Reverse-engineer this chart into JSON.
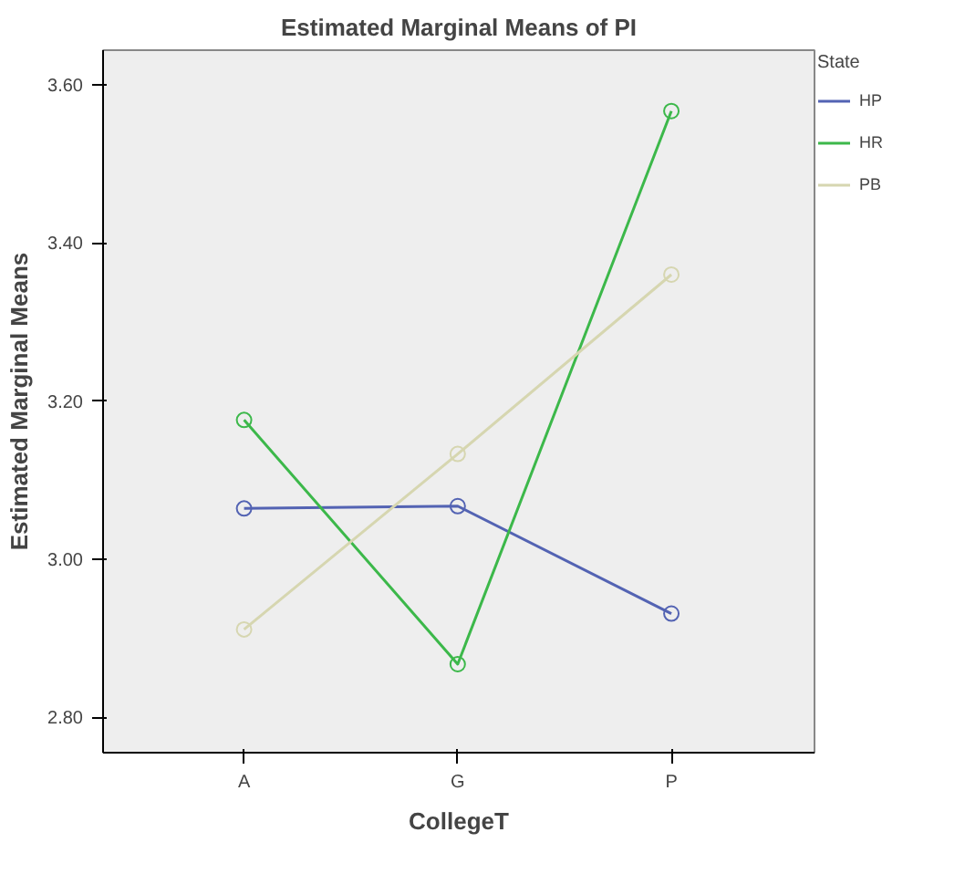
{
  "chart_data": {
    "type": "line",
    "title": "Estimated Marginal Means of PI",
    "xlabel": "CollegeT",
    "ylabel": "Estimated Marginal Means",
    "legend_title": "State",
    "categories": [
      "A",
      "G",
      "P"
    ],
    "series": [
      {
        "name": "HP",
        "color": "#5363b3",
        "values": [
          3.064,
          3.067,
          2.931
        ]
      },
      {
        "name": "HR",
        "color": "#3cb84a",
        "values": [
          3.176,
          2.867,
          3.567
        ]
      },
      {
        "name": "PB",
        "color": "#d6d6b0",
        "values": [
          2.911,
          3.133,
          3.36
        ]
      }
    ],
    "ylim": [
      2.755,
      3.644
    ],
    "yticks": [
      {
        "value": 2.8,
        "label": "2.80"
      },
      {
        "value": 3.0,
        "label": "3.00"
      },
      {
        "value": 3.2,
        "label": "3.20"
      },
      {
        "value": 3.4,
        "label": "3.40"
      },
      {
        "value": 3.6,
        "label": "3.60"
      }
    ],
    "grid": false,
    "legend": "top right",
    "marker": "circle",
    "line_style": "solid"
  }
}
